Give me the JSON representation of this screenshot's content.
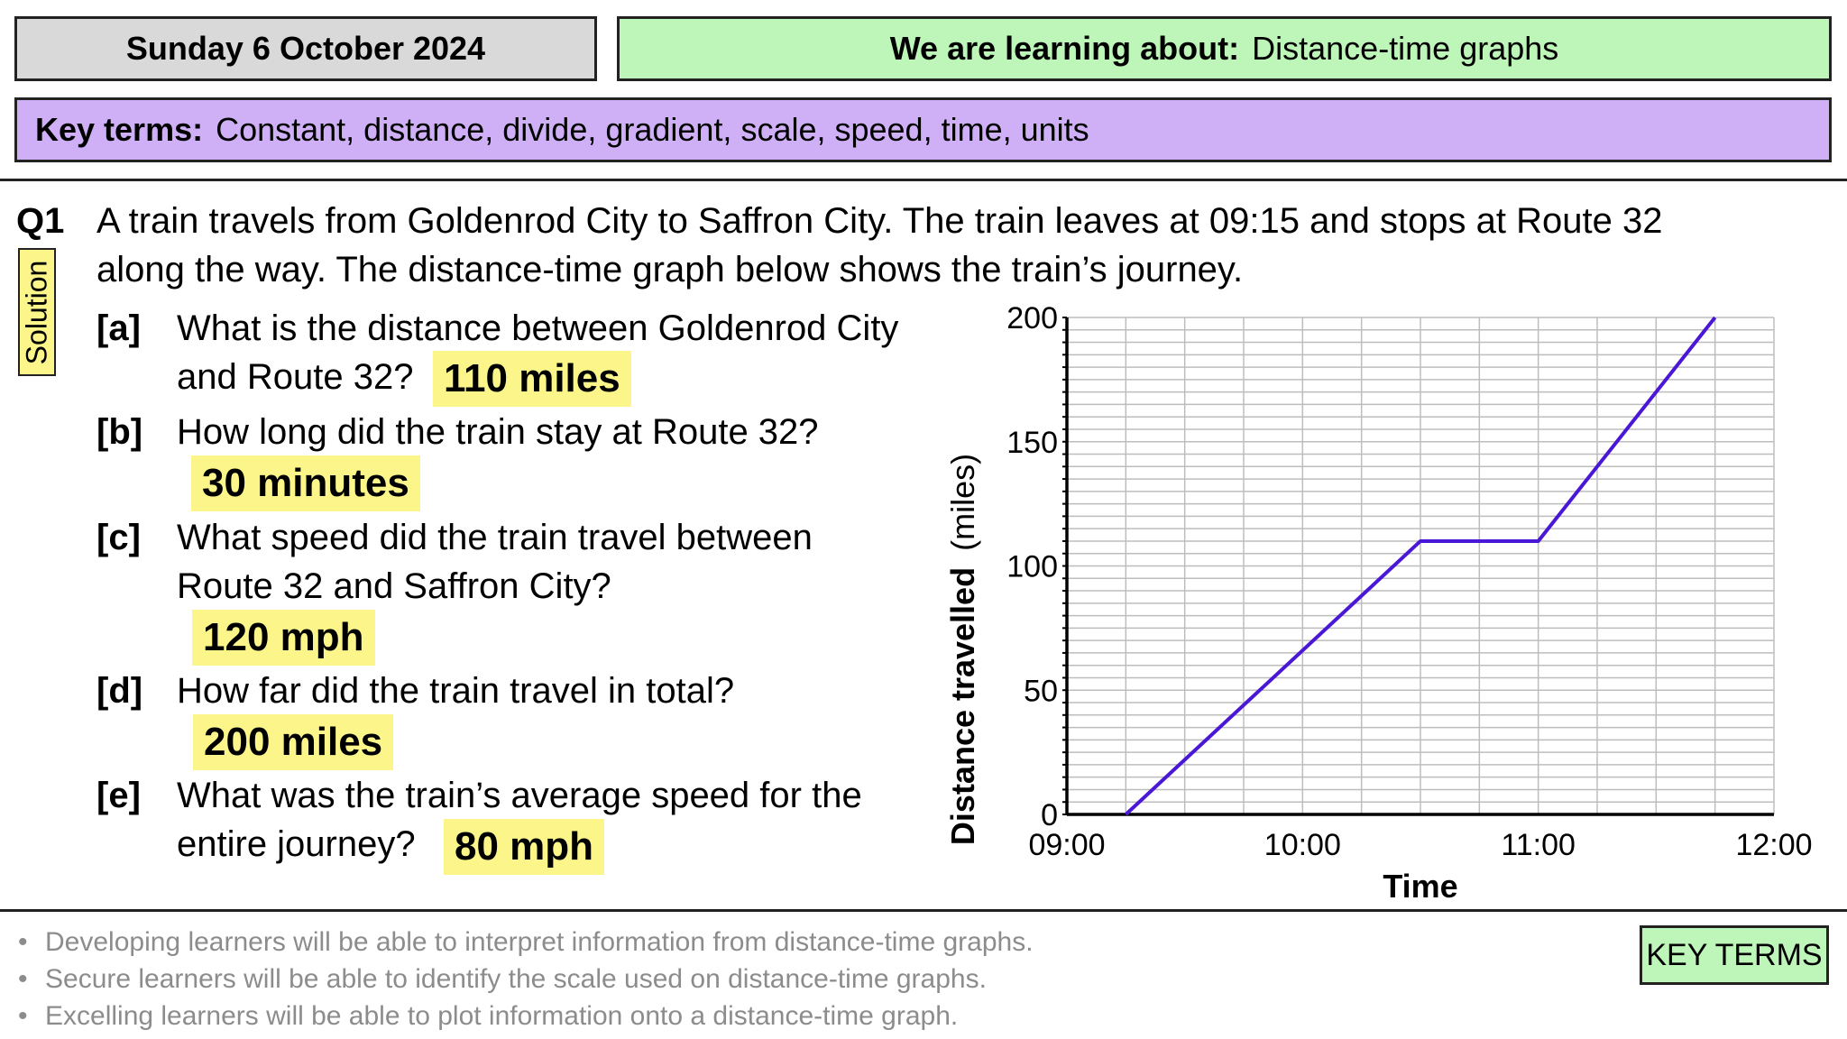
{
  "header": {
    "date": "Sunday 6 October 2024",
    "learning_label": "We are learning about:",
    "learning_topic": "Distance-time graphs",
    "key_terms_label": "Key terms:",
    "key_terms": "Constant, distance, divide, gradient, scale, speed, time, units"
  },
  "question": {
    "number": "Q1",
    "intro_line1": "A train travels from Goldenrod City to Saffron City. The train leaves at 09:15 and stops at Route 32",
    "intro_line2": "along the way. The distance-time graph below shows the train’s journey.",
    "solution_tag": "Solution",
    "parts": [
      {
        "label": "[a]",
        "line1": "What is the distance between Goldenrod City",
        "line2": "and Route 32?",
        "answer": "110 miles"
      },
      {
        "label": "[b]",
        "line1": "How long did the train stay at Route 32?",
        "line2": "",
        "answer": "30 minutes"
      },
      {
        "label": "[c]",
        "line1": "What speed did the train travel between",
        "line2": "Route 32 and Saffron City?",
        "answer": "120 mph"
      },
      {
        "label": "[d]",
        "line1": "How far did the train travel in total?",
        "line2": "",
        "answer": "200 miles"
      },
      {
        "label": "[e]",
        "line1": "What was the train’s average speed for the",
        "line2": "entire journey?",
        "answer": "80 mph"
      }
    ]
  },
  "chart_data": {
    "type": "line",
    "xlabel": "Time",
    "ylabel_bold": "Distance travelled",
    "ylabel_unit": "(miles)",
    "x_ticks": [
      "09:00",
      "10:00",
      "11:00",
      "12:00"
    ],
    "y_ticks": [
      0,
      50,
      100,
      150,
      200
    ],
    "xlim": [
      "09:00",
      "12:00"
    ],
    "ylim": [
      0,
      200
    ],
    "grid": true,
    "line_color": "#4a17d6",
    "series": [
      {
        "x": [
          "09:15",
          "10:30",
          "11:00",
          "11:45"
        ],
        "values": [
          0,
          110,
          110,
          200
        ]
      }
    ]
  },
  "objectives": [
    "Developing learners will be able to interpret information from distance-time graphs.",
    "Secure learners will be able to identify the scale used on distance-time graphs.",
    "Excelling learners will be able to plot information onto a distance-time graph."
  ],
  "key_terms_button": "KEY TERMS",
  "colors": {
    "date_bg": "#d9d9d9",
    "learning_bg": "#bdf6b8",
    "keyterms_bg": "#cfb0f6",
    "answer_highlight": "#fcf68a",
    "objective_text": "#8c8c8c"
  }
}
